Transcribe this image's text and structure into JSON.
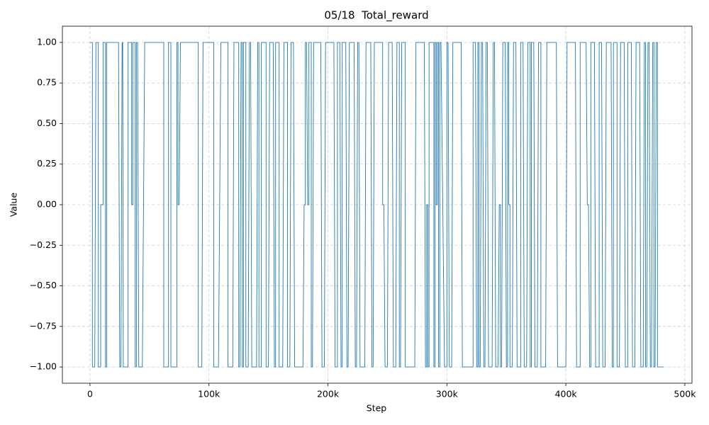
{
  "chart_data": {
    "type": "line",
    "title": "05/18  Total_reward",
    "xlabel": "Step",
    "ylabel": "Value",
    "color": "#1f77b4",
    "grid": true,
    "xlim": [
      -23200,
      506000
    ],
    "ylim": [
      -1.1,
      1.1
    ],
    "xticks": [
      0,
      {
        "value": 100000,
        "label": "100k"
      },
      {
        "value": 200000,
        "label": "200k"
      },
      {
        "value": 300000,
        "label": "300k"
      },
      {
        "value": 400000,
        "label": "400k"
      },
      {
        "value": 500000,
        "label": "500k"
      }
    ],
    "yticks": [
      {
        "value": -1,
        "label": "−1.00"
      },
      {
        "value": -0.75,
        "label": "−0.75"
      },
      {
        "value": -0.5,
        "label": "−0.50"
      },
      {
        "value": -0.25,
        "label": "−0.25"
      },
      {
        "value": 0,
        "label": "0.00"
      },
      {
        "value": 0.25,
        "label": "0.25"
      },
      {
        "value": 0.5,
        "label": "0.50"
      },
      {
        "value": 0.75,
        "label": "0.75"
      },
      {
        "value": 1,
        "label": "1.00"
      }
    ],
    "x": [
      0,
      2000,
      2000,
      4000,
      5000,
      7000,
      7000,
      9000,
      9000,
      11000,
      11000,
      13000,
      13000,
      14000,
      14000,
      24000,
      25000,
      26000,
      27000,
      27500,
      28000,
      32000,
      32000,
      35000,
      35000,
      36000,
      36000,
      38000,
      38000,
      39000,
      39000,
      40000,
      41000,
      44000,
      46000,
      62000,
      62000,
      66000,
      66000,
      68000,
      68000,
      73000,
      73000,
      74000,
      74000,
      75000,
      76000,
      91000,
      91000,
      94000,
      95000,
      104000,
      104000,
      108000,
      110000,
      116000,
      116000,
      120000,
      121000,
      125000,
      125000,
      126000,
      127000,
      128000,
      128000,
      129000,
      129000,
      131000,
      131000,
      133000,
      134000,
      135000,
      136000,
      140000,
      141000,
      142000,
      142000,
      144000,
      144000,
      148000,
      148000,
      150000,
      151000,
      154000,
      155000,
      156000,
      156000,
      159000,
      159000,
      162000,
      163000,
      166000,
      166000,
      168000,
      169000,
      171000,
      172000,
      179000,
      180000,
      181000,
      181000,
      182000,
      183000,
      184000,
      184000,
      186000,
      186000,
      187000,
      188000,
      194000,
      195000,
      197000,
      198000,
      205000,
      206000,
      208000,
      208000,
      210000,
      211000,
      212000,
      212000,
      215000,
      216000,
      217000,
      218000,
      222000,
      223000,
      224000,
      225000,
      226000,
      227000,
      231000,
      232000,
      236000,
      237000,
      238000,
      239000,
      246000,
      246000,
      247000,
      248000,
      250000,
      251000,
      254000,
      255000,
      257000,
      258000,
      260000,
      260000,
      261000,
      262000,
      265000,
      265000,
      273000,
      274000,
      281000,
      282000,
      283000,
      283000,
      284000,
      284000,
      285000,
      285000,
      289000,
      289000,
      290000,
      290000,
      291000,
      291000,
      292000,
      292000,
      293000,
      293000,
      294000,
      294000,
      295000,
      298000,
      300000,
      300000,
      301000,
      302000,
      304000,
      305000,
      312000,
      313000,
      322000,
      322000,
      324000,
      325000,
      326000,
      326000,
      327000,
      327000,
      328000,
      329000,
      330000,
      331000,
      332000,
      333000,
      334000,
      335000,
      338000,
      339000,
      340000,
      341000,
      343000,
      344000,
      345000,
      345000,
      346000,
      347000,
      349000,
      350000,
      351000,
      351000,
      352000,
      352000,
      353000,
      353000,
      355000,
      356000,
      358000,
      359000,
      362000,
      362000,
      364000,
      365000,
      367000,
      368000,
      370000,
      370000,
      371000,
      371000,
      373000,
      374000,
      376000,
      377000,
      379000,
      379000,
      383000,
      384000,
      392000,
      393000,
      400000,
      401000,
      408000,
      409000,
      412000,
      412000,
      417000,
      418000,
      419000,
      420000,
      421000,
      421000,
      424000,
      425000,
      428000,
      428000,
      430000,
      431000,
      433000,
      434000,
      438000,
      439000,
      440000,
      440000,
      443000,
      443000,
      445000,
      446000,
      449000,
      450000,
      452000,
      452000,
      455000,
      456000,
      458000,
      459000,
      462000,
      463000,
      465000,
      466000,
      467000,
      467000,
      468000,
      469000,
      470000,
      471000,
      472000,
      473000,
      474000,
      474000,
      475000,
      476000,
      477000,
      477000,
      482000
    ],
    "values": [
      1,
      1,
      -1,
      -1,
      1,
      1,
      -1,
      -1,
      0,
      0,
      1,
      1,
      -1,
      -1,
      1,
      1,
      -1,
      -1,
      1,
      1,
      -1,
      -1,
      1,
      1,
      0,
      0,
      1,
      1,
      -1,
      -1,
      1,
      1,
      -1,
      -1,
      1,
      1,
      -1,
      -1,
      1,
      1,
      -1,
      -1,
      1,
      1,
      0,
      0,
      1,
      1,
      -1,
      -1,
      1,
      1,
      -1,
      -1,
      1,
      1,
      -1,
      -1,
      1,
      1,
      -1,
      -1,
      1,
      1,
      -1,
      -1,
      1,
      1,
      -1,
      -1,
      1,
      1,
      -1,
      -1,
      1,
      1,
      -1,
      -1,
      1,
      1,
      -1,
      -1,
      1,
      1,
      -1,
      -1,
      1,
      1,
      -1,
      -1,
      1,
      1,
      -1,
      -1,
      1,
      1,
      -1,
      -1,
      0,
      0,
      1,
      1,
      0,
      0,
      1,
      1,
      -1,
      -1,
      1,
      1,
      -1,
      -1,
      1,
      1,
      -1,
      -1,
      1,
      1,
      -1,
      -1,
      1,
      1,
      -1,
      -1,
      1,
      1,
      -1,
      -1,
      1,
      1,
      -1,
      -1,
      1,
      1,
      -1,
      -1,
      1,
      1,
      0,
      0,
      -1,
      -1,
      1,
      1,
      -1,
      -1,
      1,
      1,
      -1,
      -1,
      1,
      1,
      -1,
      -1,
      1,
      1,
      -1,
      -1,
      0,
      0,
      -1,
      -1,
      1,
      1,
      -1,
      -1,
      1,
      1,
      0,
      0,
      1,
      1,
      -1,
      -1,
      1,
      1,
      -1,
      -1,
      1,
      1,
      -1,
      -1,
      1,
      1,
      -1,
      -1,
      1,
      1,
      -1,
      -1,
      1,
      1,
      -1,
      -1,
      1,
      1,
      -1,
      -1,
      1,
      1,
      -1,
      -1,
      1,
      1,
      -1,
      -1,
      0,
      0,
      -1,
      -1,
      1,
      1,
      -1,
      -1,
      1,
      1,
      0,
      0,
      -1,
      -1,
      1,
      1,
      -1,
      -1,
      1,
      1,
      -1,
      -1,
      1,
      1,
      -1,
      -1,
      1,
      1,
      -1,
      -1,
      1,
      1,
      -1,
      -1,
      1,
      1,
      -1,
      -1,
      1,
      1,
      -1,
      -1,
      1,
      1,
      0,
      0,
      -1,
      -1,
      1,
      1,
      -1,
      -1,
      1,
      1,
      -1,
      -1,
      1,
      1,
      -1,
      -1,
      1,
      1,
      -1,
      -1,
      1,
      1,
      -1,
      -1,
      1,
      1,
      -1,
      -1,
      1,
      1,
      -1,
      -1,
      1,
      1,
      -1,
      -1,
      1,
      1,
      -1,
      -1,
      1,
      1,
      -1,
      -1,
      1,
      1,
      -1,
      -1
    ]
  }
}
